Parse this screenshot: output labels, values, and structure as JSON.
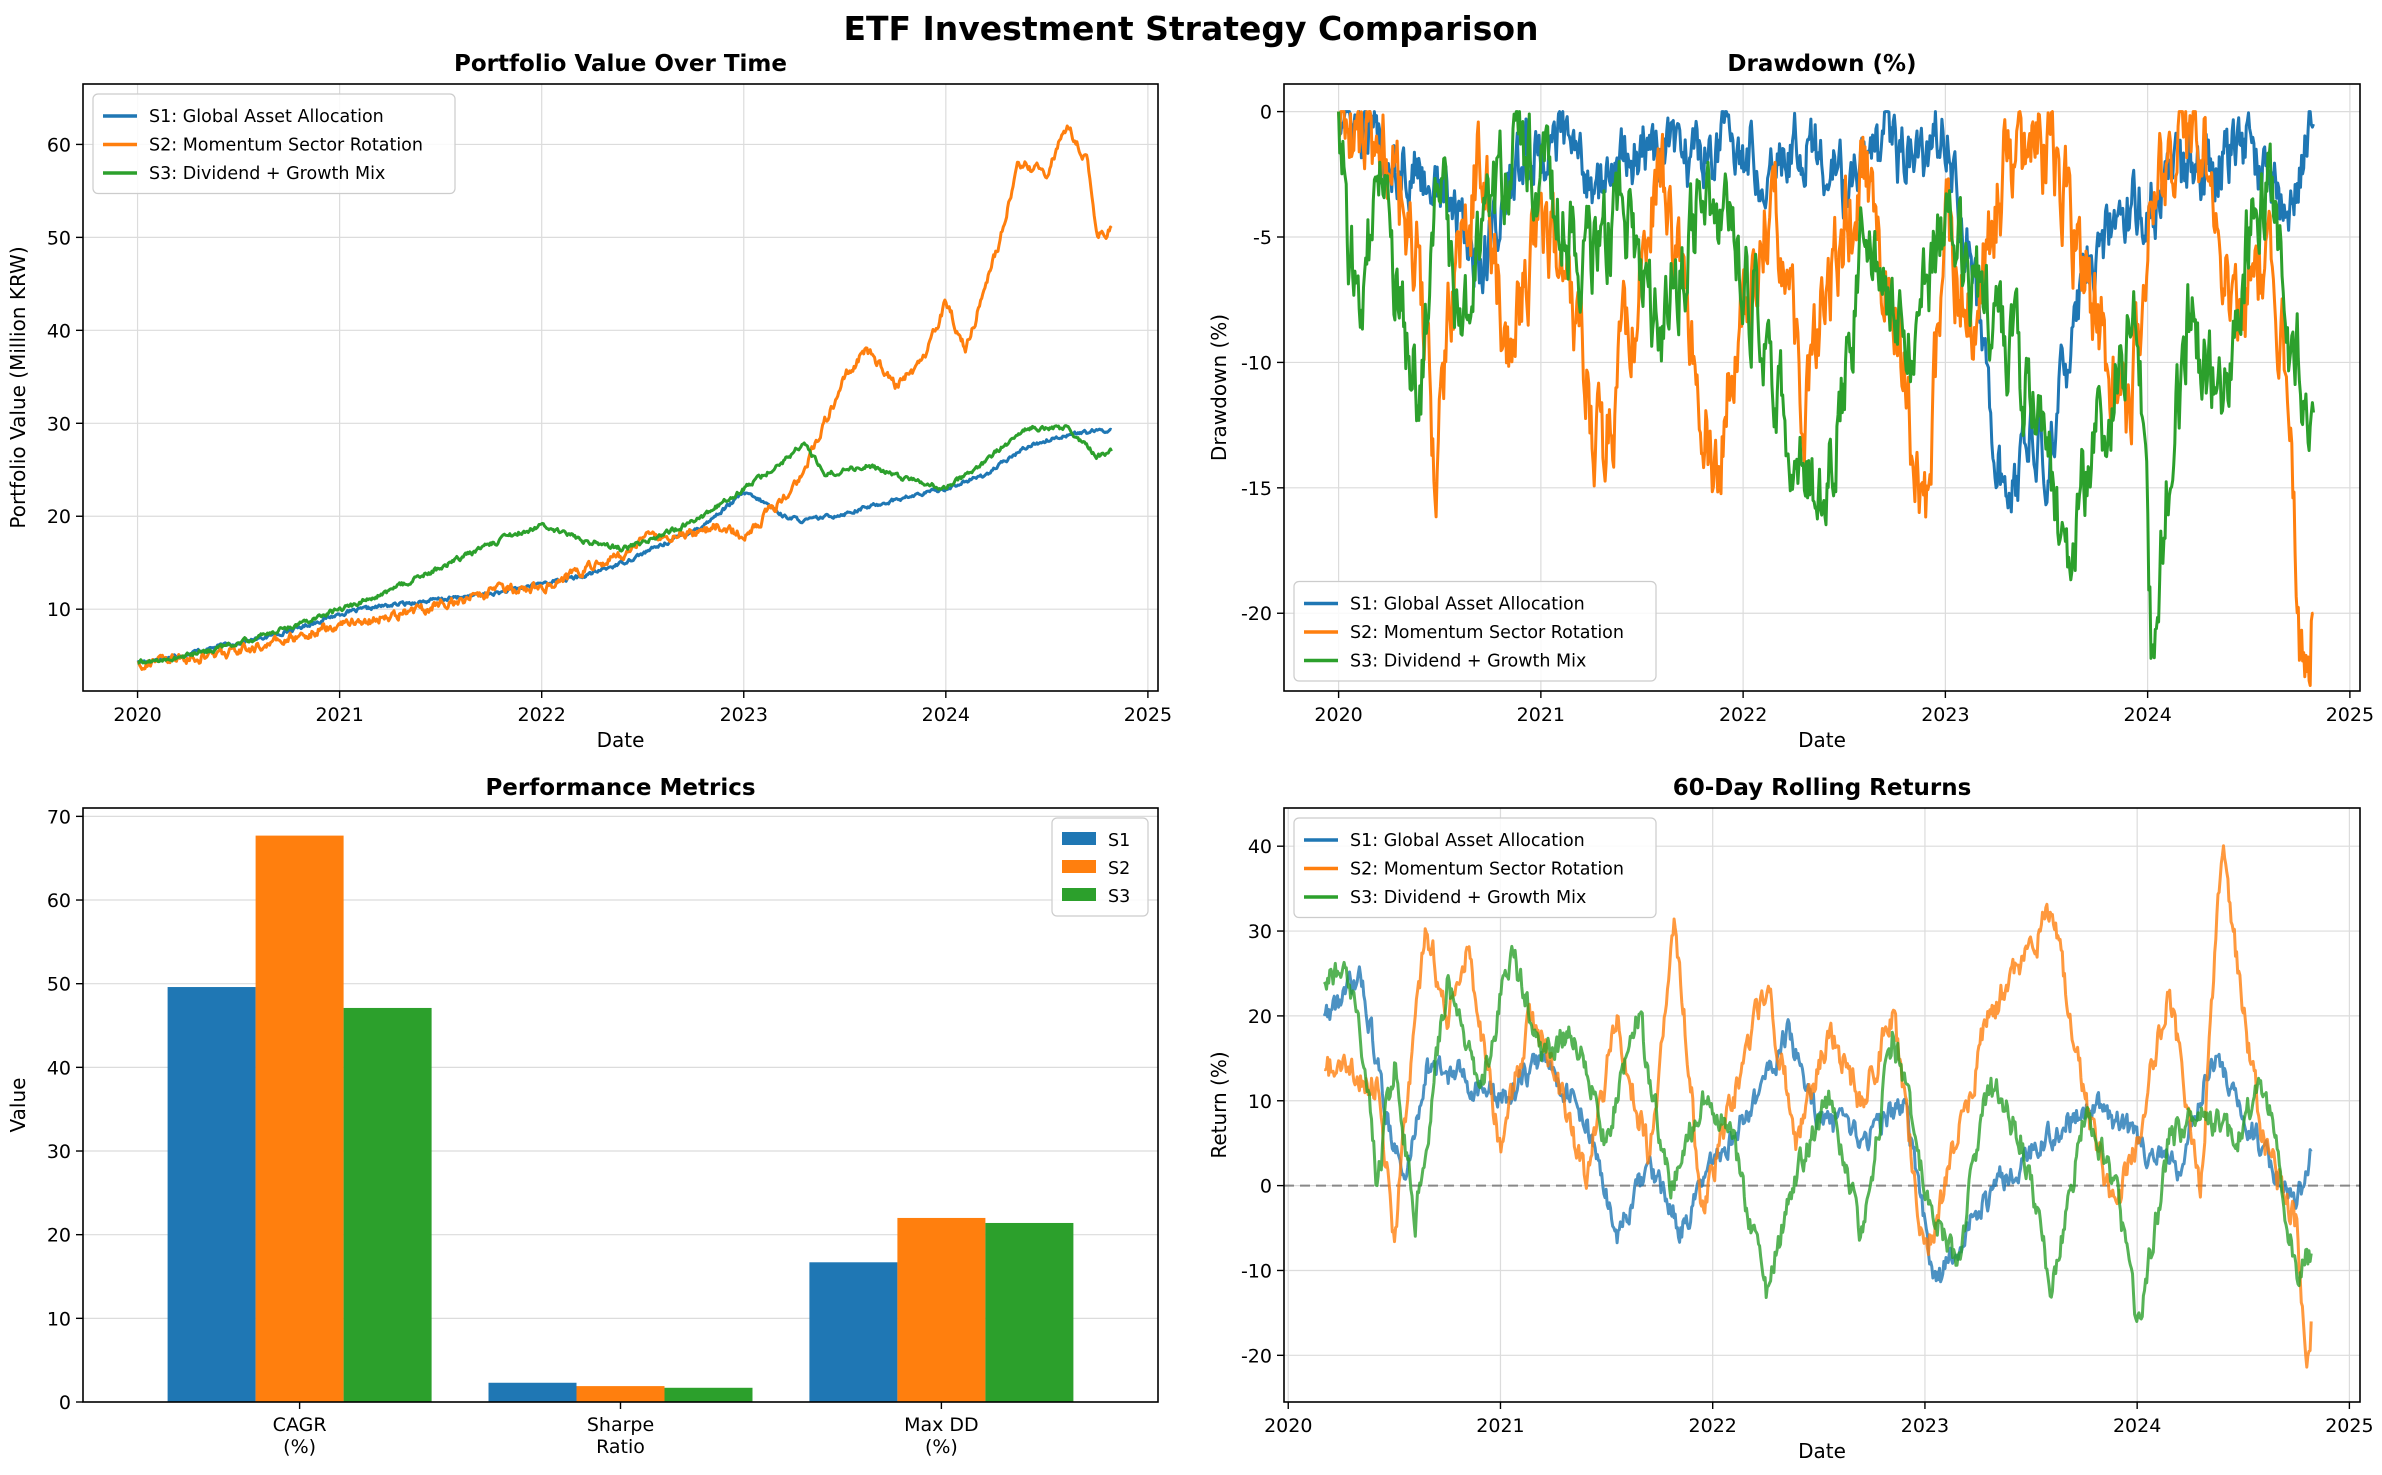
{
  "figure": {
    "title": "ETF Investment Strategy Comparison"
  },
  "colors": {
    "s1": "#1f77b4",
    "s2": "#ff7f0e",
    "s3": "#2ca02c",
    "zero_line": "#888888"
  },
  "chart_data": [
    {
      "id": "portfolio",
      "type": "line",
      "title": "Portfolio Value Over Time",
      "xlabel": "Date",
      "ylabel": "Portfolio Value (Million KRW)",
      "xlim": [
        2019.73,
        2025.05
      ],
      "ylim": [
        1.2,
        66.5
      ],
      "xticks": [
        2020,
        2021,
        2022,
        2023,
        2024,
        2025
      ],
      "yticks": [
        10,
        20,
        30,
        40,
        50,
        60
      ],
      "grid": true,
      "legend": "top-left",
      "series": [
        {
          "name": "S1: Global Asset Allocation",
          "color": "#1f77b4",
          "x": [
            2020.0,
            2020.2,
            2020.4,
            2020.6,
            2020.8,
            2021.0,
            2021.2,
            2021.4,
            2021.6,
            2021.8,
            2022.0,
            2022.2,
            2022.4,
            2022.6,
            2022.8,
            2023.0,
            2023.1,
            2023.2,
            2023.3,
            2023.5,
            2023.7,
            2023.9,
            2024.0,
            2024.2,
            2024.4,
            2024.6,
            2024.82
          ],
          "y": [
            4.3,
            5.0,
            6.0,
            6.8,
            8.0,
            9.5,
            10.3,
            10.8,
            11.3,
            11.8,
            12.8,
            13.5,
            15.0,
            17.0,
            19.0,
            22.5,
            21.5,
            20.0,
            19.5,
            20.3,
            21.5,
            22.5,
            23.0,
            24.5,
            27.5,
            28.8,
            29.3
          ]
        },
        {
          "name": "S2: Momentum Sector Rotation",
          "color": "#ff7f0e",
          "x": [
            2020.0,
            2020.3,
            2020.5,
            2020.7,
            2020.9,
            2021.0,
            2021.2,
            2021.4,
            2021.6,
            2021.8,
            2022.0,
            2022.2,
            2022.4,
            2022.5,
            2022.7,
            2022.9,
            2023.0,
            2023.1,
            2023.2,
            2023.3,
            2023.4,
            2023.5,
            2023.6,
            2023.75,
            2023.9,
            2024.0,
            2024.1,
            2024.2,
            2024.3,
            2024.35,
            2024.5,
            2024.6,
            2024.7,
            2024.75,
            2024.82
          ],
          "y": [
            4.2,
            4.8,
            5.5,
            6.5,
            7.8,
            8.5,
            9.0,
            10.0,
            11.0,
            12.0,
            12.5,
            14.0,
            16.0,
            17.5,
            18.0,
            19.0,
            18.0,
            20.0,
            22.0,
            25.0,
            30.0,
            35.0,
            38.0,
            34.0,
            37.0,
            43.0,
            38.0,
            45.0,
            52.0,
            58.0,
            57.0,
            62.0,
            58.0,
            50.0,
            51.0
          ]
        },
        {
          "name": "S3: Dividend + Growth Mix",
          "color": "#2ca02c",
          "x": [
            2020.0,
            2020.2,
            2020.4,
            2020.6,
            2020.8,
            2021.0,
            2021.2,
            2021.4,
            2021.6,
            2021.8,
            2022.0,
            2022.2,
            2022.4,
            2022.6,
            2022.8,
            2023.0,
            2023.2,
            2023.3,
            2023.4,
            2023.6,
            2023.8,
            2024.0,
            2024.2,
            2024.4,
            2024.6,
            2024.75,
            2024.82
          ],
          "y": [
            4.2,
            4.8,
            5.8,
            7.0,
            8.5,
            10.0,
            11.5,
            13.5,
            15.5,
            17.5,
            19.0,
            17.5,
            16.5,
            18.0,
            20.0,
            23.0,
            26.0,
            28.0,
            24.5,
            25.5,
            24.0,
            23.0,
            26.0,
            29.5,
            29.5,
            26.5,
            27.0
          ]
        }
      ]
    },
    {
      "id": "drawdown",
      "type": "line",
      "title": "Drawdown (%)",
      "xlabel": "Date",
      "ylabel": "Drawdown (%)",
      "xlim": [
        2019.73,
        2025.05
      ],
      "ylim": [
        -23.1,
        1.1
      ],
      "xticks": [
        2020,
        2021,
        2022,
        2023,
        2024,
        2025
      ],
      "yticks": [
        0,
        -5,
        -10,
        -15,
        -20
      ],
      "grid": true,
      "legend": "bottom-left",
      "series": [
        {
          "name": "S1: Global Asset Allocation",
          "color": "#1f77b4",
          "x": [
            2020.0,
            2020.3,
            2020.5,
            2020.7,
            2020.9,
            2021.1,
            2021.3,
            2021.5,
            2021.7,
            2021.9,
            2022.1,
            2022.3,
            2022.5,
            2022.7,
            2022.9,
            2023.0,
            2023.1,
            2023.2,
            2023.3,
            2023.4,
            2023.5,
            2023.6,
            2023.7,
            2023.9,
            2024.1,
            2024.3,
            2024.5,
            2024.6,
            2024.7,
            2024.82
          ],
          "y": [
            0.0,
            -2.0,
            -3.0,
            -6.0,
            -2.0,
            -1.0,
            -3.0,
            -1.5,
            -2.0,
            -1.0,
            -2.0,
            -1.0,
            -3.0,
            -1.5,
            -2.0,
            -0.5,
            -5.0,
            -10.0,
            -16.5,
            -13.0,
            -14.0,
            -10.0,
            -6.0,
            -4.0,
            -3.0,
            -2.0,
            -1.0,
            -3.0,
            -4.0,
            -0.5
          ]
        },
        {
          "name": "S2: Momentum Sector Rotation",
          "color": "#ff7f0e",
          "x": [
            2020.0,
            2020.25,
            2020.4,
            2020.48,
            2020.55,
            2020.7,
            2020.85,
            2021.0,
            2021.15,
            2021.3,
            2021.45,
            2021.6,
            2021.75,
            2021.85,
            2022.0,
            2022.15,
            2022.3,
            2022.45,
            2022.6,
            2022.75,
            2022.9,
            2023.0,
            2023.15,
            2023.3,
            2023.45,
            2023.6,
            2023.75,
            2023.9,
            2024.0,
            2024.15,
            2024.3,
            2024.45,
            2024.6,
            2024.7,
            2024.76,
            2024.82
          ],
          "y": [
            0.0,
            -2.0,
            -6.0,
            -15.0,
            -8.0,
            -2.0,
            -10.0,
            -3.0,
            -8.0,
            -14.0,
            -8.0,
            -2.0,
            -10.0,
            -14.5,
            -8.0,
            -3.0,
            -12.0,
            -6.0,
            -2.0,
            -8.0,
            -16.0,
            -5.0,
            -8.0,
            -2.0,
            -1.0,
            -4.0,
            -8.0,
            -13.0,
            -4.0,
            -1.0,
            -2.0,
            -9.0,
            -5.0,
            -10.0,
            -22.0,
            -20.0
          ]
        },
        {
          "name": "S3: Dividend + Growth Mix",
          "color": "#2ca02c",
          "x": [
            2020.0,
            2020.05,
            2020.1,
            2020.2,
            2020.3,
            2020.4,
            2020.5,
            2020.6,
            2020.75,
            2020.9,
            2021.0,
            2021.2,
            2021.4,
            2021.6,
            2021.8,
            2022.0,
            2022.2,
            2022.4,
            2022.6,
            2022.8,
            2023.0,
            2023.2,
            2023.4,
            2023.6,
            2023.8,
            2023.95,
            2024.02,
            2024.1,
            2024.2,
            2024.35,
            2024.5,
            2024.6,
            2024.7,
            2024.82
          ],
          "y": [
            0.0,
            -5.0,
            -8.0,
            -3.0,
            -8.0,
            -11.5,
            -2.0,
            -9.0,
            -4.0,
            -1.0,
            -2.0,
            -6.0,
            -4.0,
            -9.0,
            -3.0,
            -6.0,
            -12.0,
            -15.5,
            -5.0,
            -10.0,
            -4.0,
            -8.0,
            -11.0,
            -17.0,
            -12.0,
            -8.0,
            -21.5,
            -15.0,
            -8.0,
            -12.0,
            -5.0,
            -3.0,
            -9.0,
            -12.0
          ]
        }
      ]
    },
    {
      "id": "metrics",
      "type": "bar",
      "title": "Performance Metrics",
      "xlabel": "",
      "ylabel": "Value",
      "ylim": [
        0,
        71
      ],
      "yticks": [
        0,
        10,
        20,
        30,
        40,
        50,
        60,
        70
      ],
      "grid": true,
      "legend": "top-right",
      "categories": [
        [
          "CAGR",
          "(%)"
        ],
        [
          "Sharpe",
          "Ratio"
        ],
        [
          "Max DD",
          "(%)"
        ]
      ],
      "series": [
        {
          "name": "S1",
          "color": "#1f77b4",
          "values": [
            49.6,
            2.3,
            16.7
          ]
        },
        {
          "name": "S2",
          "color": "#ff7f0e",
          "values": [
            67.7,
            1.9,
            22.0
          ]
        },
        {
          "name": "S3",
          "color": "#2ca02c",
          "values": [
            47.1,
            1.7,
            21.4
          ]
        }
      ]
    },
    {
      "id": "rolling",
      "type": "line",
      "title": "60-Day Rolling Returns",
      "xlabel": "Date",
      "ylabel": "Return (%)",
      "xlim": [
        2019.98,
        2025.05
      ],
      "ylim": [
        -25.5,
        44.5
      ],
      "xticks": [
        2020,
        2021,
        2022,
        2023,
        2024,
        2025
      ],
      "yticks": [
        -20,
        -10,
        0,
        10,
        20,
        30,
        40
      ],
      "grid": true,
      "legend": "top-left",
      "series": [
        {
          "name": "S1: Global Asset Allocation",
          "color": "#1f77b4",
          "x": [
            2020.17,
            2020.25,
            2020.35,
            2020.45,
            2020.55,
            2020.65,
            2020.8,
            2021.0,
            2021.2,
            2021.4,
            2021.55,
            2021.7,
            2021.85,
            2022.0,
            2022.2,
            2022.35,
            2022.5,
            2022.7,
            2022.9,
            2023.05,
            2023.2,
            2023.4,
            2023.6,
            2023.8,
            2024.0,
            2024.2,
            2024.35,
            2024.5,
            2024.65,
            2024.75,
            2024.82
          ],
          "y": [
            20.0,
            22.0,
            24.0,
            10.0,
            0.0,
            14.0,
            13.0,
            10.0,
            15.0,
            8.0,
            -6.0,
            2.0,
            -5.0,
            2.0,
            10.0,
            18.0,
            8.0,
            5.0,
            10.0,
            -12.0,
            -5.0,
            2.0,
            6.0,
            10.0,
            5.0,
            2.0,
            16.0,
            8.0,
            2.0,
            -3.0,
            4.0
          ]
        },
        {
          "name": "S2: Momentum Sector Rotation",
          "color": "#ff7f0e",
          "x": [
            2020.17,
            2020.25,
            2020.3,
            2020.42,
            2020.5,
            2020.65,
            2020.75,
            2020.85,
            2021.0,
            2021.15,
            2021.3,
            2021.4,
            2021.55,
            2021.7,
            2021.82,
            2021.95,
            2022.1,
            2022.25,
            2022.4,
            2022.55,
            2022.7,
            2022.85,
            2023.0,
            2023.15,
            2023.3,
            2023.45,
            2023.6,
            2023.75,
            2023.9,
            2024.0,
            2024.15,
            2024.3,
            2024.4,
            2024.5,
            2024.6,
            2024.75,
            2024.8,
            2024.82
          ],
          "y": [
            13.7,
            13.7,
            12.8,
            12.5,
            -6.0,
            31.0,
            20.0,
            28.0,
            5.0,
            20.0,
            10.0,
            0.0,
            20.0,
            3.0,
            32.0,
            -2.0,
            10.0,
            24.0,
            5.0,
            18.0,
            10.0,
            20.0,
            -8.0,
            5.0,
            20.0,
            25.0,
            33.0,
            10.0,
            -3.0,
            5.0,
            23.0,
            0.0,
            41.0,
            20.0,
            5.0,
            -5.0,
            -21.0,
            -16.0
          ]
        },
        {
          "name": "S3: Dividend + Growth Mix",
          "color": "#2ca02c",
          "x": [
            2020.17,
            2020.25,
            2020.33,
            2020.42,
            2020.5,
            2020.6,
            2020.75,
            2020.9,
            2021.05,
            2021.2,
            2021.35,
            2021.5,
            2021.65,
            2021.8,
            2021.95,
            2022.1,
            2022.25,
            2022.4,
            2022.55,
            2022.7,
            2022.85,
            2023.0,
            2023.15,
            2023.3,
            2023.45,
            2023.6,
            2023.75,
            2023.9,
            2024.0,
            2024.15,
            2024.3,
            2024.45,
            2024.6,
            2024.75,
            2024.82
          ],
          "y": [
            24.0,
            25.0,
            20.0,
            0.0,
            15.0,
            -4.0,
            25.0,
            10.0,
            28.0,
            15.0,
            18.0,
            5.0,
            20.0,
            0.0,
            10.0,
            5.0,
            -13.0,
            2.0,
            10.0,
            -6.0,
            18.0,
            0.0,
            -10.0,
            12.0,
            6.0,
            -12.0,
            8.0,
            0.0,
            -17.0,
            5.0,
            10.0,
            5.0,
            12.0,
            -10.0,
            -8.0
          ]
        }
      ]
    }
  ]
}
